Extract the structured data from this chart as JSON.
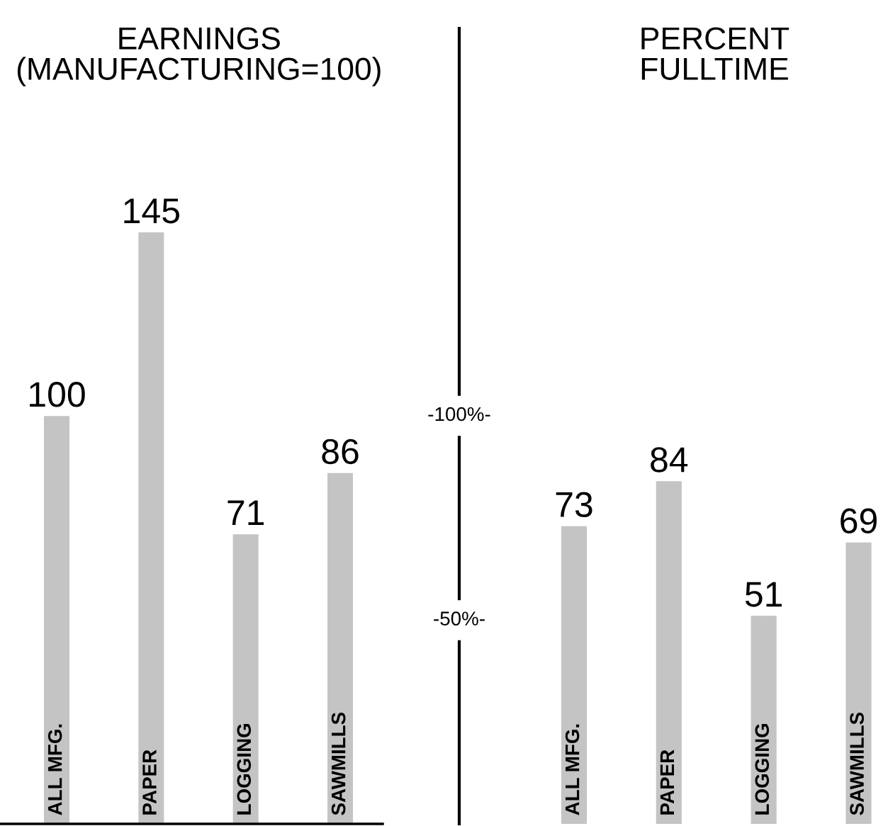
{
  "chart_data": [
    {
      "type": "bar",
      "title": "EARNINGS\n(MANUFACTURING=100)",
      "categories": [
        "ALL MFG.",
        "PAPER",
        "LOGGING",
        "SAWMILLS"
      ],
      "values": [
        100,
        145,
        71,
        86
      ],
      "color": "#c4c4c4",
      "data_labels": true
    },
    {
      "type": "bar",
      "title": "PERCENT\nFULLTIME",
      "categories": [
        "ALL MFG.",
        "PAPER",
        "LOGGING",
        "SAWMILLS"
      ],
      "values": [
        73,
        84,
        51,
        69
      ],
      "color": "#c4c4c4",
      "data_labels": true,
      "annotations": [
        "-100%-",
        "-50%-"
      ]
    }
  ]
}
